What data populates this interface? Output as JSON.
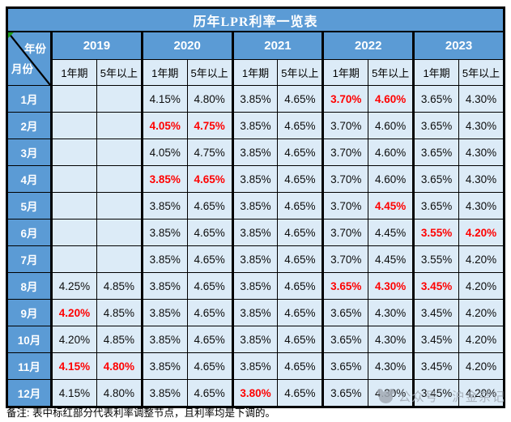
{
  "colors": {
    "header_blue": "#5b9bd5",
    "cell_light_blue": "#dcebf7",
    "highlight_red": "#ff0000",
    "border_black": "#000000",
    "watermark_gray": "#a3abb5",
    "marker_green": "#1d9e1d"
  },
  "note": "备注: 表中标红部分代表利率调整节点，且利率均是下调的。",
  "watermark": {
    "label": "公众号 · 沪金杂记"
  },
  "chart_data": {
    "type": "table",
    "title": "历年LPR利率一览表",
    "corner": {
      "top": "年份",
      "bottom": "月份"
    },
    "column_groups": [
      "2019",
      "2020",
      "2021",
      "2022",
      "2023"
    ],
    "sub_columns": [
      "1年期",
      "5年以上"
    ],
    "rows": [
      {
        "month": "1月",
        "values": [
          "",
          "",
          "4.15%",
          "4.80%",
          "3.85%",
          "4.65%",
          "3.70%",
          "4.60%",
          "3.65%",
          "4.30%"
        ],
        "red": [
          6,
          7
        ]
      },
      {
        "month": "2月",
        "values": [
          "",
          "",
          "4.05%",
          "4.75%",
          "3.85%",
          "4.65%",
          "3.70%",
          "4.60%",
          "3.65%",
          "4.30%"
        ],
        "red": [
          2,
          3
        ]
      },
      {
        "month": "3月",
        "values": [
          "",
          "",
          "4.05%",
          "4.75%",
          "3.85%",
          "4.65%",
          "3.70%",
          "4.60%",
          "3.65%",
          "4.30%"
        ],
        "red": []
      },
      {
        "month": "4月",
        "values": [
          "",
          "",
          "3.85%",
          "4.65%",
          "3.85%",
          "4.65%",
          "3.70%",
          "4.60%",
          "3.65%",
          "4.30%"
        ],
        "red": [
          2,
          3
        ]
      },
      {
        "month": "5月",
        "values": [
          "",
          "",
          "3.85%",
          "4.65%",
          "3.85%",
          "4.65%",
          "3.70%",
          "4.45%",
          "3.65%",
          "4.30%"
        ],
        "red": [
          7
        ]
      },
      {
        "month": "6月",
        "values": [
          "",
          "",
          "3.85%",
          "4.65%",
          "3.85%",
          "4.65%",
          "3.70%",
          "4.45%",
          "3.55%",
          "4.20%"
        ],
        "red": [
          8,
          9
        ]
      },
      {
        "month": "7月",
        "values": [
          "",
          "",
          "3.85%",
          "4.65%",
          "3.85%",
          "4.65%",
          "3.70%",
          "4.45%",
          "3.55%",
          "4.20%"
        ],
        "red": []
      },
      {
        "month": "8月",
        "values": [
          "4.25%",
          "4.85%",
          "3.85%",
          "4.65%",
          "3.85%",
          "4.65%",
          "3.65%",
          "4.30%",
          "3.45%",
          "4.20%"
        ],
        "red": [
          6,
          7,
          8
        ]
      },
      {
        "month": "9月",
        "values": [
          "4.20%",
          "4.85%",
          "3.85%",
          "4.65%",
          "3.85%",
          "4.65%",
          "3.65%",
          "4.30%",
          "3.45%",
          "4.20%"
        ],
        "red": [
          0
        ]
      },
      {
        "month": "10月",
        "values": [
          "4.20%",
          "4.85%",
          "3.85%",
          "4.65%",
          "3.85%",
          "4.65%",
          "3.65%",
          "4.30%",
          "3.45%",
          "4.20%"
        ],
        "red": []
      },
      {
        "month": "11月",
        "values": [
          "4.15%",
          "4.80%",
          "3.85%",
          "4.65%",
          "3.85%",
          "4.65%",
          "3.65%",
          "4.30%",
          "3.45%",
          "4.20%"
        ],
        "red": [
          0,
          1
        ]
      },
      {
        "month": "12月",
        "values": [
          "4.15%",
          "4.80%",
          "3.85%",
          "4.65%",
          "3.80%",
          "4.65%",
          "3.65%",
          "4.30%",
          "3.45%",
          "4.20%"
        ],
        "red": [
          4
        ]
      }
    ]
  }
}
